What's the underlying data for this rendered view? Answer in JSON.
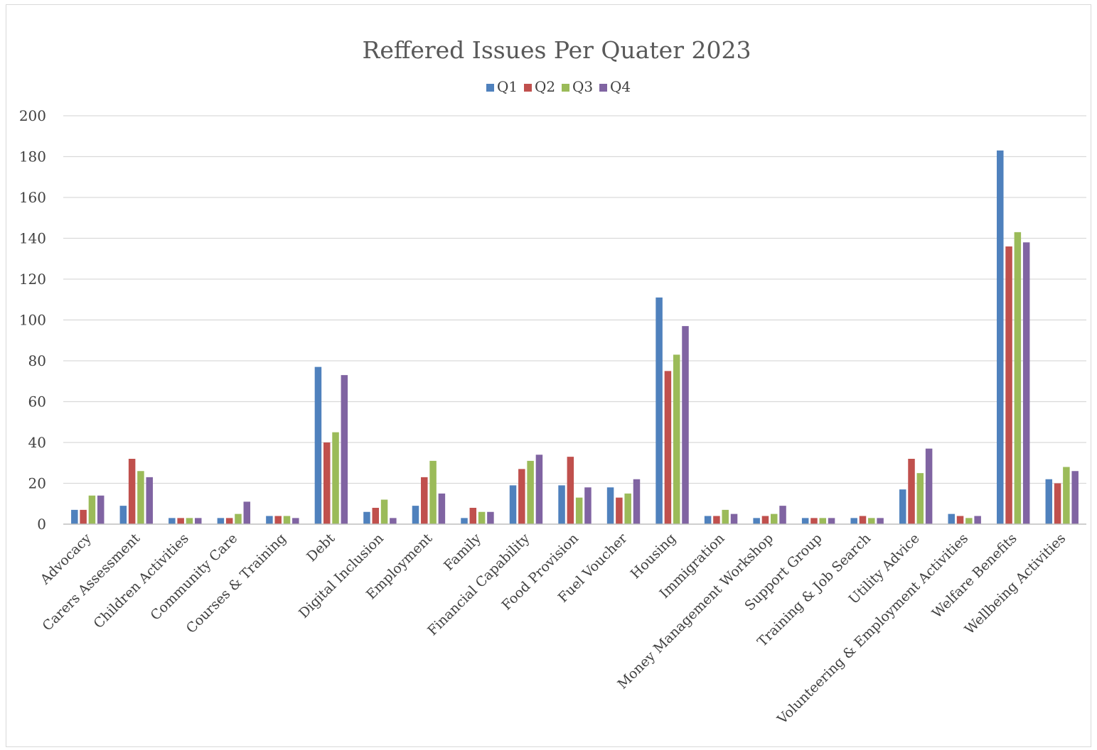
{
  "chart_data": {
    "type": "bar",
    "title": "Reffered Issues Per Quater 2023",
    "xlabel": "",
    "ylabel": "",
    "ylim": [
      0,
      200
    ],
    "yticks": [
      0,
      20,
      40,
      60,
      80,
      100,
      120,
      140,
      160,
      180,
      200
    ],
    "grid": true,
    "legend_position": "top",
    "categories": [
      "Advocacy",
      "Carers Assessment",
      "Children Activities",
      "Community Care",
      "Courses & Training",
      "Debt",
      "Digital Inclusion",
      "Employment",
      "Family",
      "Financial Capability",
      "Food Provision",
      "Fuel Voucher",
      "Housing",
      "Immigration",
      "Money Management Workshop",
      "Support Group",
      "Training & Job Search",
      "Utility Advice",
      "Volunteering & Employment Activities",
      "Welfare Benefits",
      "Wellbeing Activities"
    ],
    "series": [
      {
        "name": "Q1",
        "color": "#4f81bd",
        "values": [
          7,
          9,
          3,
          3,
          4,
          77,
          6,
          9,
          3,
          19,
          19,
          18,
          111,
          4,
          3,
          3,
          3,
          17,
          5,
          183,
          22
        ]
      },
      {
        "name": "Q2",
        "color": "#c0504d",
        "values": [
          7,
          32,
          3,
          3,
          4,
          40,
          8,
          23,
          8,
          27,
          33,
          13,
          75,
          4,
          4,
          3,
          4,
          32,
          4,
          136,
          20
        ]
      },
      {
        "name": "Q3",
        "color": "#9bbb59",
        "values": [
          14,
          26,
          3,
          5,
          4,
          45,
          12,
          31,
          6,
          31,
          13,
          15,
          83,
          7,
          5,
          3,
          3,
          25,
          3,
          143,
          28
        ]
      },
      {
        "name": "Q4",
        "color": "#8064a2",
        "values": [
          14,
          23,
          3,
          11,
          3,
          73,
          3,
          15,
          6,
          34,
          18,
          22,
          97,
          5,
          9,
          3,
          3,
          37,
          4,
          138,
          26
        ]
      }
    ]
  }
}
